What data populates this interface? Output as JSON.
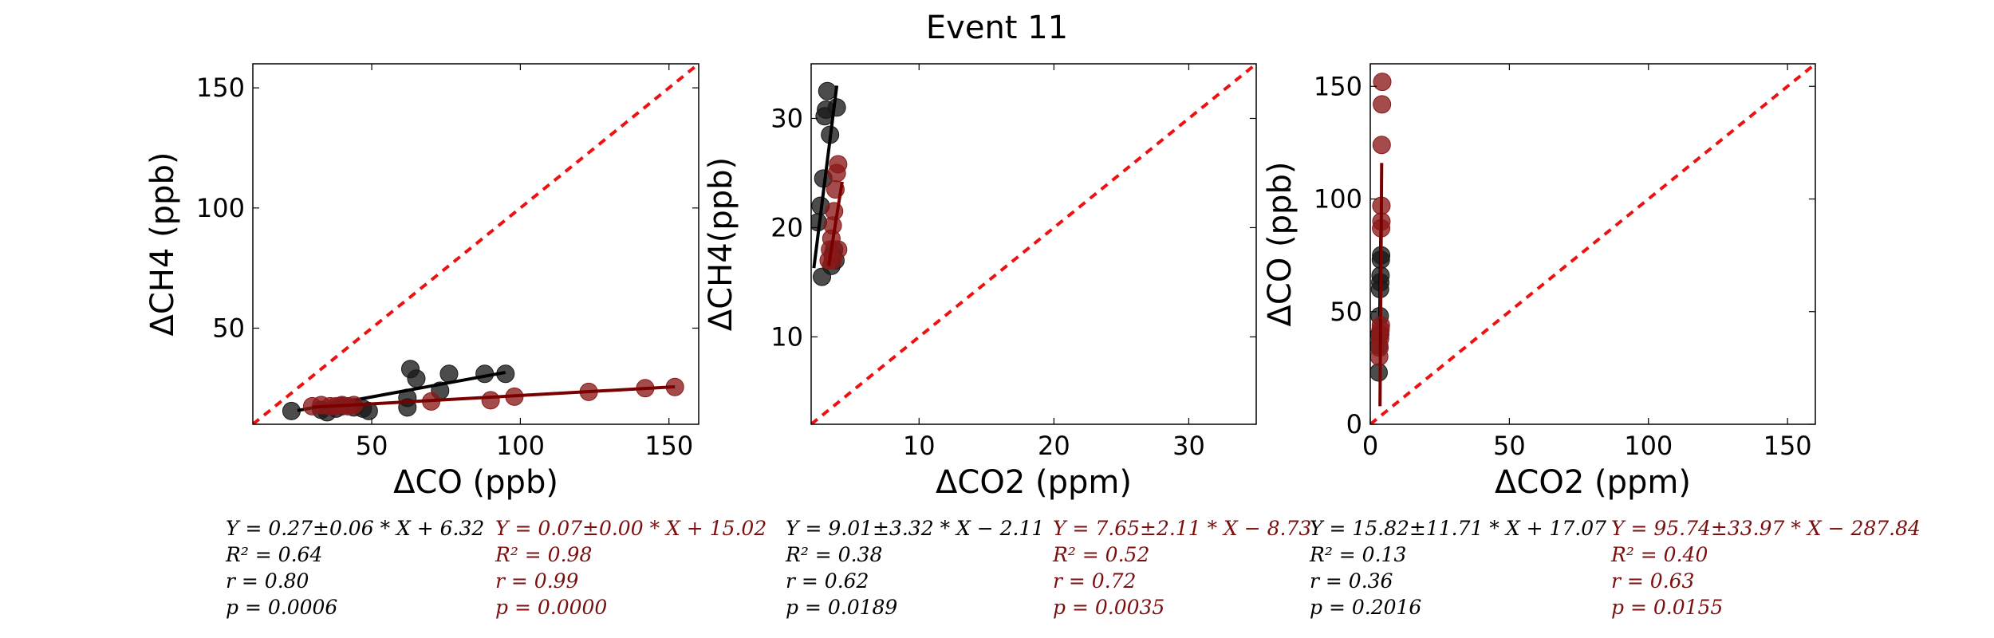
{
  "figure_title": "Event 11",
  "colors": {
    "black_series": "#1a1a1a",
    "red_series": "#8b1a1a",
    "reference_line": "#ee1111",
    "stats_red": "#7a0f0f"
  },
  "chart_data": [
    {
      "type": "scatter",
      "xlabel": "ΔCO (ppb)",
      "ylabel": "ΔCH4 (ppb)",
      "xlim": [
        10,
        160
      ],
      "ylim": [
        10,
        160
      ],
      "xticks": [
        "50",
        "100",
        "150"
      ],
      "yticks": [
        "50",
        "100",
        "150"
      ],
      "reference_line": "y = x",
      "series": [
        {
          "color": "black",
          "points": [
            [
              23,
              15.5
            ],
            [
              33,
              16
            ],
            [
              35,
              15
            ],
            [
              38,
              16.5
            ],
            [
              40,
              17.5
            ],
            [
              44,
              17
            ],
            [
              47,
              16.5
            ],
            [
              49,
              15.5
            ],
            [
              62,
              17
            ],
            [
              62,
              21
            ],
            [
              63,
              33
            ],
            [
              65,
              29
            ],
            [
              73,
              24
            ],
            [
              76,
              31
            ],
            [
              88,
              31
            ],
            [
              95,
              31
            ]
          ],
          "fit": [
            [
              25,
              15.7
            ],
            [
              95,
              31.6
            ]
          ]
        },
        {
          "color": "red",
          "points": [
            [
              30,
              17.5
            ],
            [
              33,
              18
            ],
            [
              36,
              17.5
            ],
            [
              38,
              17.5
            ],
            [
              40,
              18
            ],
            [
              42,
              17.5
            ],
            [
              44,
              18
            ],
            [
              70,
              19.5
            ],
            [
              90,
              20
            ],
            [
              98,
              21.5
            ],
            [
              123,
              23.5
            ],
            [
              142,
              25
            ],
            [
              152,
              25.5
            ]
          ],
          "fit": [
            [
              30,
              17.1
            ],
            [
              152,
              25.6
            ]
          ]
        }
      ],
      "stats": {
        "black": [
          "Y = 0.27±0.06 * X + 6.32",
          "R² = 0.64",
          "r = 0.80",
          "p = 0.0006"
        ],
        "red": [
          "Y = 0.07±0.00 * X + 15.02",
          "R² = 0.98",
          "r = 0.99",
          "p = 0.0000"
        ]
      }
    },
    {
      "type": "scatter",
      "xlabel": "ΔCO2 (ppm)",
      "ylabel": "ΔCH4(ppb)",
      "xlim": [
        2,
        35
      ],
      "ylim": [
        2,
        35
      ],
      "xticks": [
        "10",
        "20",
        "30"
      ],
      "yticks": [
        "10",
        "20",
        "30"
      ],
      "reference_line": "y = x",
      "series": [
        {
          "color": "black",
          "points": [
            [
              2.5,
              20.5
            ],
            [
              2.7,
              22
            ],
            [
              2.8,
              15.5
            ],
            [
              2.9,
              24.5
            ],
            [
              3.0,
              30.2
            ],
            [
              3.1,
              30.8
            ],
            [
              3.2,
              32.5
            ],
            [
              3.4,
              28.5
            ],
            [
              3.5,
              16.5
            ],
            [
              3.6,
              17.5
            ],
            [
              3.7,
              18
            ],
            [
              3.8,
              17
            ],
            [
              3.9,
              31
            ]
          ],
          "fit": [
            [
              2.2,
              16.3
            ],
            [
              3.9,
              33.0
            ]
          ]
        },
        {
          "color": "red",
          "points": [
            [
              3.3,
              17
            ],
            [
              3.4,
              18
            ],
            [
              3.5,
              19
            ],
            [
              3.6,
              20.2
            ],
            [
              3.7,
              21.5
            ],
            [
              3.8,
              23.5
            ],
            [
              3.9,
              25
            ],
            [
              4.0,
              25.8
            ],
            [
              4.0,
              18
            ],
            [
              3.6,
              17
            ]
          ],
          "fit": [
            [
              3.3,
              16.5
            ],
            [
              4.3,
              24.2
            ]
          ]
        }
      ],
      "stats": {
        "black": [
          "Y = 9.01±3.32 * X − 2.11",
          "R² = 0.38",
          "r = 0.62",
          "p = 0.0189"
        ],
        "red": [
          "Y = 7.65±2.11 * X − 8.73",
          "R² = 0.52",
          "r = 0.72",
          "p = 0.0035"
        ]
      }
    },
    {
      "type": "scatter",
      "xlabel": "ΔCO2 (ppm)",
      "ylabel": "ΔCO (ppb)",
      "xlim": [
        0,
        160
      ],
      "ylim": [
        0,
        160
      ],
      "xticks": [
        "0",
        "50",
        "100",
        "150"
      ],
      "yticks": [
        "0",
        "50",
        "100",
        "150"
      ],
      "reference_line": "y = x",
      "series": [
        {
          "color": "black",
          "points": [
            [
              3,
              23
            ],
            [
              3.2,
              35
            ],
            [
              3.4,
              48
            ],
            [
              3.5,
              60
            ],
            [
              3.6,
              63
            ],
            [
              3.7,
              66
            ],
            [
              3.8,
              73
            ],
            [
              3.9,
              75
            ],
            [
              3.3,
              40
            ]
          ],
          "fit": [
            [
              3.3,
              38
            ],
            [
              3.8,
              86
            ]
          ]
        },
        {
          "color": "red",
          "points": [
            [
              3.2,
              30
            ],
            [
              3.3,
              34
            ],
            [
              3.5,
              38
            ],
            [
              3.6,
              40
            ],
            [
              3.7,
              42
            ],
            [
              3.8,
              44
            ],
            [
              3.9,
              87
            ],
            [
              4.0,
              90
            ],
            [
              4.0,
              97
            ],
            [
              4.1,
              124
            ],
            [
              4.2,
              142
            ],
            [
              4.3,
              152
            ]
          ],
          "fit": [
            [
              3.5,
              8
            ],
            [
              4.1,
              116
            ]
          ]
        }
      ],
      "stats": {
        "black": [
          "Y = 15.82±11.71 * X + 17.07",
          "R² = 0.13",
          "r = 0.36",
          "p = 0.2016"
        ],
        "red": [
          "Y = 95.74±33.97 * X − 287.84",
          "R² = 0.40",
          "r = 0.63",
          "p = 0.0155"
        ]
      }
    }
  ]
}
